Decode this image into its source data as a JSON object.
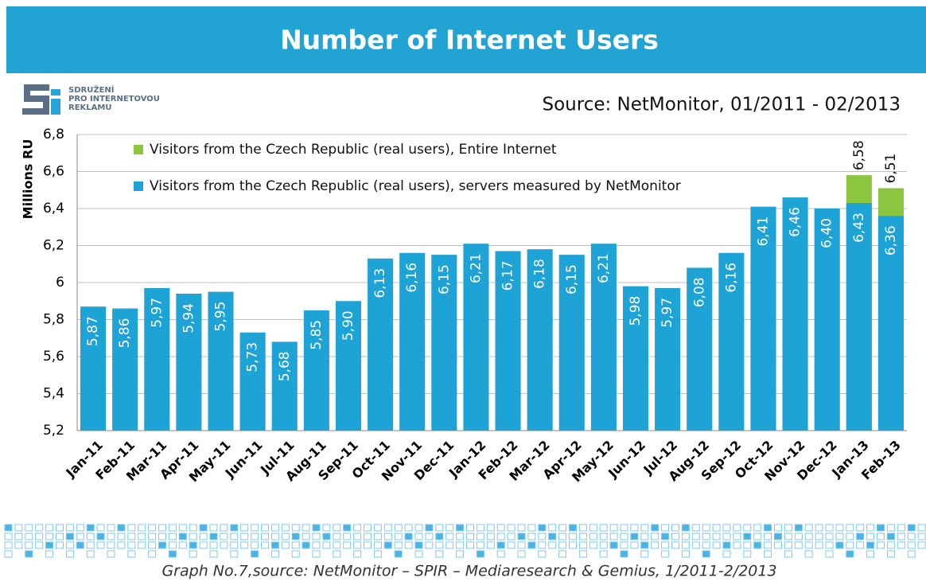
{
  "chart_data": {
    "type": "bar",
    "title": "Number of Internet Users",
    "subtitle": "Source: NetMonitor, 01/2011 - 02/2013",
    "y_label": "Millions RU",
    "categories": [
      "Jan-11",
      "Feb-11",
      "Mar-11",
      "Apr-11",
      "May-11",
      "Jun-11",
      "Jul-11",
      "Aug-11",
      "Sep-11",
      "Oct-11",
      "Nov-11",
      "Dec-11",
      "Jan-12",
      "Feb-12",
      "Mar-12",
      "Apr-12",
      "May-12",
      "Jun-12",
      "Jul-12",
      "Aug-12",
      "Sep-12",
      "Oct-12",
      "Nov-12",
      "Dec-12",
      "Jan-13",
      "Feb-13"
    ],
    "series": [
      {
        "name": "Visitors from the Czech Republic (real users), Entire Internet",
        "color": "#8cc63f",
        "values": [
          null,
          null,
          null,
          null,
          null,
          null,
          null,
          null,
          null,
          null,
          null,
          null,
          null,
          null,
          null,
          null,
          null,
          null,
          null,
          null,
          null,
          null,
          null,
          null,
          6.58,
          6.51
        ],
        "value_labels": [
          null,
          null,
          null,
          null,
          null,
          null,
          null,
          null,
          null,
          null,
          null,
          null,
          null,
          null,
          null,
          null,
          null,
          null,
          null,
          null,
          null,
          null,
          null,
          null,
          "6,58",
          "6,51"
        ]
      },
      {
        "name": "Visitors from the Czech Republic (real users), servers measured by NetMonitor",
        "color": "#1ea3d6",
        "values": [
          5.87,
          5.86,
          5.97,
          5.94,
          5.95,
          5.73,
          5.68,
          5.85,
          5.9,
          6.13,
          6.16,
          6.15,
          6.21,
          6.17,
          6.18,
          6.15,
          6.21,
          5.98,
          5.97,
          6.08,
          6.16,
          6.41,
          6.46,
          6.4,
          6.43,
          6.36
        ],
        "value_labels": [
          "5,87",
          "5,86",
          "5,97",
          "5,94",
          "5,95",
          "5,73",
          "5,68",
          "5,85",
          "5,90",
          "6,13",
          "6,16",
          "6,15",
          "6,21",
          "6,17",
          "6,18",
          "6,15",
          "6,21",
          "5,98",
          "5,97",
          "6,08",
          "6,16",
          "6,41",
          "6,46",
          "6,40",
          "6,43",
          "6,36"
        ]
      }
    ],
    "ylim": [
      5.2,
      6.8
    ],
    "yticks": [
      {
        "value": 5.2,
        "label": "5,2"
      },
      {
        "value": 5.4,
        "label": "5,4"
      },
      {
        "value": 5.6,
        "label": "5,6"
      },
      {
        "value": 5.8,
        "label": "5,8"
      },
      6,
      {
        "value": 6.2,
        "label": "6,2"
      },
      {
        "value": 6.4,
        "label": "6,4"
      },
      {
        "value": 6.6,
        "label": "6,6"
      },
      {
        "value": 6.8,
        "label": "6,8"
      }
    ],
    "grid": true
  },
  "logo": {
    "lines": [
      "SDRUŽENÍ",
      "PRO INTERNETOVOU",
      "REKLAMU"
    ]
  },
  "caption": "Graph No.7,source: NetMonitor – SPIR – Mediaresearch & Gemius, 1/2011-2/2013"
}
